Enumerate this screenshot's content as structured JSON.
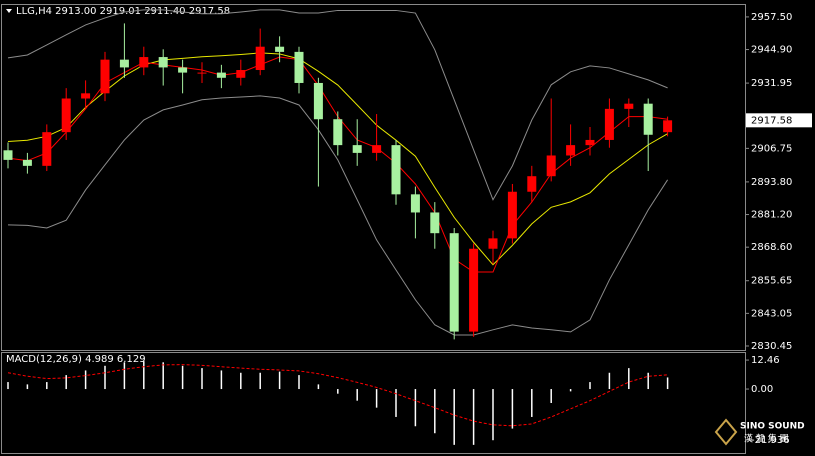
{
  "chart_data": [
    {
      "type": "candlestick",
      "title": "LLG,H4  2913.00 2919.01 2911.40 2917.58",
      "open": [
        2906,
        2902.3,
        2900,
        2913,
        2926,
        2928,
        2941,
        2938,
        2942,
        2938,
        2936,
        2936,
        2934,
        2937,
        2946,
        2944,
        2932,
        2918,
        2908,
        2905,
        2908,
        2889,
        2882,
        2874,
        2836,
        2868,
        2872,
        2890,
        2896,
        2904,
        2908,
        2910,
        2922,
        2924,
        2913
      ],
      "high": [
        2909,
        2905,
        2916,
        2930,
        2933,
        2944,
        2955,
        2946,
        2945,
        2941,
        2940,
        2939,
        2941,
        2953,
        2950,
        2946,
        2934,
        2921,
        2918,
        2920,
        2910,
        2892,
        2886,
        2876,
        2870,
        2875,
        2893,
        2900,
        2926,
        2916,
        2915,
        2926,
        2926,
        2926,
        2919.01
      ],
      "low": [
        2899,
        2897,
        2898,
        2910,
        2922,
        2925,
        2934,
        2935,
        2931,
        2928,
        2932,
        2930,
        2931,
        2935,
        2940,
        2928,
        2892,
        2904,
        2900,
        2902,
        2885,
        2872,
        2868,
        2833,
        2834,
        2862,
        2870,
        2886,
        2894,
        2900,
        2904,
        2907,
        2915,
        2898,
        2911.4
      ],
      "close": [
        2902.3,
        2900,
        2913,
        2926,
        2928,
        2941,
        2938,
        2942,
        2938,
        2936,
        2936,
        2934,
        2937,
        2946,
        2944,
        2932,
        2918,
        2908,
        2905,
        2908,
        2889,
        2882,
        2874,
        2836,
        2868,
        2872,
        2890,
        2896,
        2904,
        2908,
        2910,
        2922,
        2924,
        2912,
        2917.58
      ],
      "up_color": "#ff0000",
      "down_color": "#a8f0a0",
      "overlays": [
        {
          "color": "#8c8c8c",
          "values": [
            2941.7,
            2942.8,
            2946.7,
            2950.6,
            2954.4,
            2957.1,
            2959.4,
            2960.2,
            2960.2,
            2959.4,
            2958.7,
            2958.7,
            2959.4,
            2960.2,
            2960.2,
            2959,
            2959,
            2960,
            2960,
            2960,
            2960,
            2959,
            2944.8,
            2925.5,
            2906.2,
            2886.9,
            2900,
            2917.7,
            2931.3,
            2936.3,
            2938.6,
            2937.8,
            2935.5,
            2933.2,
            2930.1
          ]
        },
        {
          "color": "#8c8c8c",
          "values": [
            2877.2,
            2877,
            2876,
            2879,
            2890.7,
            2900.4,
            2910,
            2917.7,
            2921.6,
            2923.5,
            2925.5,
            2926.2,
            2926.6,
            2927,
            2926.2,
            2923.5,
            2913.9,
            2902.3,
            2886.9,
            2871.4,
            2859.8,
            2848.3,
            2838.6,
            2834.7,
            2834.7,
            2836.7,
            2838.6,
            2837.4,
            2836.7,
            2835.9,
            2840.5,
            2856,
            2869.5,
            2883,
            2894.6
          ]
        },
        {
          "color": "#e8e800",
          "values": [
            2909.4,
            2909.9,
            2911.4,
            2914.8,
            2922.6,
            2928.8,
            2934.7,
            2939,
            2940.9,
            2941.5,
            2942.1,
            2942.5,
            2943,
            2943.6,
            2943.2,
            2941.3,
            2936.5,
            2931.2,
            2923.5,
            2915.7,
            2909.9,
            2903.7,
            2891.7,
            2880.1,
            2870.5,
            2861.8,
            2869.3,
            2877.6,
            2884,
            2886.1,
            2889.6,
            2896.9,
            2902.5,
            2908.1,
            2912.4
          ]
        },
        {
          "color": "#ff0000",
          "values": [
            2903,
            2902,
            2905,
            2913,
            2922,
            2932,
            2936,
            2940,
            2939,
            2938,
            2937,
            2935,
            2936,
            2939,
            2942,
            2941,
            2931,
            2919,
            2910,
            2907,
            2901,
            2893,
            2882,
            2864,
            2859,
            2859,
            2877,
            2886,
            2897,
            2903,
            2907,
            2913,
            2919,
            2919,
            2918
          ]
        }
      ],
      "ylim": [
        2828.9,
        2962.1
      ],
      "yticks": [
        {
          "value": 2957.5,
          "label": "2957.50"
        },
        {
          "value": 2944.9,
          "label": "2944.90"
        },
        2931.95,
        2906.75,
        {
          "value": 2893.8,
          "label": "2893.80"
        },
        {
          "value": 2881.2,
          "label": "2881.20"
        },
        {
          "value": 2868.6,
          "label": "2868.60"
        },
        2855.65,
        2843.05,
        2830.45
      ]
    },
    {
      "type": "macd",
      "title": "MACD(12,26,9) 4.989 6.129",
      "values": [
        3,
        2,
        3,
        6,
        8,
        10,
        11.5,
        12,
        11.5,
        10,
        9,
        8,
        7,
        7,
        7.5,
        6,
        2,
        -2,
        -5,
        -8,
        -12,
        -16,
        -19,
        -24,
        -24,
        -22,
        -17,
        -12,
        -6,
        -1,
        3,
        7,
        9,
        7,
        4.989
      ],
      "color": "#ffffff",
      "signal": [
        7,
        5.5,
        4.5,
        4.8,
        5.8,
        7,
        8.5,
        9.6,
        10.4,
        10.5,
        10.2,
        9.6,
        9,
        8.5,
        8.2,
        7.8,
        6.6,
        4.9,
        2.9,
        0.7,
        -2,
        -5,
        -8,
        -11.2,
        -13.8,
        -15.4,
        -15.8,
        -15,
        -12,
        -8.5,
        -5,
        -1,
        3,
        5.5,
        6.129
      ],
      "signal_color": "#ff0000",
      "ylim": [
        -27.5,
        15.5
      ],
      "yticks": [
        12.46,
        {
          "value": 0,
          "label": "0.00"
        },
        -21.936
      ]
    }
  ],
  "watermark": {
    "line1": "SINO SOUND",
    "line2": "漢 聲 集 團"
  }
}
